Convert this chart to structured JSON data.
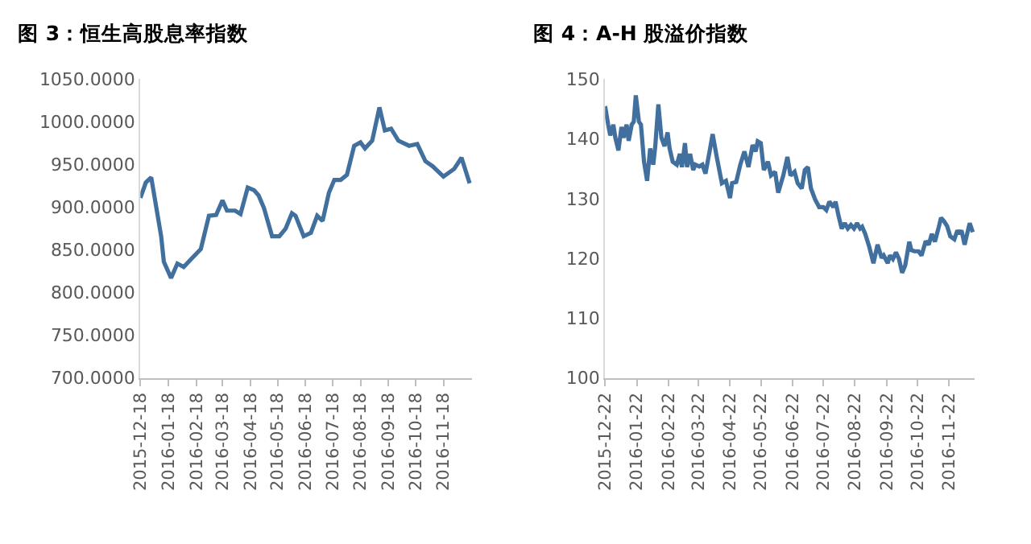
{
  "chart_data": [
    {
      "type": "line",
      "title": "图 3：恒生高股息率指数",
      "x": [
        "2015-12-18",
        "2015-12-24",
        "2015-12-30",
        "2016-01-10",
        "2016-01-13",
        "2016-01-21",
        "2016-01-28",
        "2016-02-04",
        "2016-02-12",
        "2016-02-23",
        "2016-03-03",
        "2016-03-11",
        "2016-03-18",
        "2016-03-23",
        "2016-04-01",
        "2016-04-07",
        "2016-04-15",
        "2016-04-22",
        "2016-04-27",
        "2016-05-03",
        "2016-05-12",
        "2016-05-20",
        "2016-05-27",
        "2016-06-03",
        "2016-06-07",
        "2016-06-16",
        "2016-06-24",
        "2016-07-01",
        "2016-07-07",
        "2016-07-14",
        "2016-07-20",
        "2016-07-27",
        "2016-08-03",
        "2016-08-11",
        "2016-08-18",
        "2016-08-23",
        "2016-08-31",
        "2016-09-08",
        "2016-09-14",
        "2016-09-21",
        "2016-09-29",
        "2016-10-11",
        "2016-10-20",
        "2016-10-29",
        "2016-11-06",
        "2016-11-18",
        "2016-11-30",
        "2016-12-08",
        "2016-12-17"
      ],
      "series": [
        {
          "color": "#41709f",
          "values": [
            911,
            929,
            935,
            866,
            836,
            817,
            834,
            830,
            839,
            851,
            890,
            891,
            908,
            896,
            896,
            892,
            923,
            920,
            914,
            899,
            866,
            866,
            875,
            893,
            890,
            866,
            870,
            890,
            884,
            917,
            932,
            932,
            938,
            972,
            976,
            969,
            978,
            1017,
            990,
            992,
            978,
            972,
            974,
            954,
            948,
            936,
            945,
            958,
            928
          ]
        }
      ],
      "xlim": [
        "2015-12-18",
        "2016-12-20"
      ],
      "xticks": [
        "2015-12-18",
        "2016-01-18",
        "2016-02-18",
        "2016-03-18",
        "2016-04-18",
        "2016-05-18",
        "2016-06-18",
        "2016-07-18",
        "2016-08-18",
        "2016-09-18",
        "2016-10-18",
        "2016-11-18"
      ],
      "ylim": [
        700,
        1050
      ],
      "yticks": [
        {
          "value": 700,
          "label": "700.0000"
        },
        {
          "value": 750,
          "label": "750.0000"
        },
        {
          "value": 800,
          "label": "800.0000"
        },
        {
          "value": 850,
          "label": "850.0000"
        },
        {
          "value": 900,
          "label": "900.0000"
        },
        {
          "value": 950,
          "label": "950.0000"
        },
        {
          "value": 1000,
          "label": "1000.0000"
        },
        {
          "value": 1050,
          "label": "1050.0000"
        }
      ]
    },
    {
      "type": "line",
      "title": "图 4：A-H 股溢价指数",
      "x": [
        "2015-12-22",
        "2015-12-25",
        "2015-12-27",
        "2015-12-30",
        "2016-01-01",
        "2016-01-04",
        "2016-01-07",
        "2016-01-09",
        "2016-01-12",
        "2016-01-14",
        "2016-01-17",
        "2016-01-19",
        "2016-01-21",
        "2016-01-24",
        "2016-01-26",
        "2016-01-29",
        "2016-02-01",
        "2016-02-04",
        "2016-02-07",
        "2016-02-09",
        "2016-02-12",
        "2016-02-15",
        "2016-02-18",
        "2016-02-21",
        "2016-02-23",
        "2016-02-26",
        "2016-03-01",
        "2016-03-04",
        "2016-03-06",
        "2016-03-09",
        "2016-03-11",
        "2016-03-14",
        "2016-03-17",
        "2016-03-19",
        "2016-03-23",
        "2016-03-26",
        "2016-03-29",
        "2016-04-02",
        "2016-04-05",
        "2016-04-09",
        "2016-04-14",
        "2016-04-18",
        "2016-04-22",
        "2016-04-24",
        "2016-04-28",
        "2016-05-02",
        "2016-05-06",
        "2016-05-10",
        "2016-05-14",
        "2016-05-17",
        "2016-05-19",
        "2016-05-22",
        "2016-05-25",
        "2016-05-29",
        "2016-06-01",
        "2016-06-05",
        "2016-06-08",
        "2016-06-13",
        "2016-06-17",
        "2016-06-20",
        "2016-06-24",
        "2016-06-27",
        "2016-07-01",
        "2016-07-04",
        "2016-07-07",
        "2016-07-10",
        "2016-07-14",
        "2016-07-18",
        "2016-07-22",
        "2016-07-25",
        "2016-07-28",
        "2016-08-01",
        "2016-08-03",
        "2016-08-06",
        "2016-08-09",
        "2016-08-12",
        "2016-08-15",
        "2016-08-18",
        "2016-08-21",
        "2016-08-24",
        "2016-08-27",
        "2016-08-29",
        "2016-09-01",
        "2016-09-05",
        "2016-09-09",
        "2016-09-13",
        "2016-09-17",
        "2016-09-19",
        "2016-09-23",
        "2016-09-25",
        "2016-09-28",
        "2016-10-01",
        "2016-10-04",
        "2016-10-07",
        "2016-10-10",
        "2016-10-14",
        "2016-10-16",
        "2016-10-19",
        "2016-10-23",
        "2016-10-26",
        "2016-10-30",
        "2016-11-02",
        "2016-11-05",
        "2016-11-08",
        "2016-11-12",
        "2016-11-14",
        "2016-11-17",
        "2016-11-20",
        "2016-11-23",
        "2016-11-27",
        "2016-11-30",
        "2016-12-02",
        "2016-12-04",
        "2016-12-07",
        "2016-12-10",
        "2016-12-12",
        "2016-12-15"
      ],
      "series": [
        {
          "color": "#41709f",
          "values": [
            145.5,
            142.4,
            140.6,
            142.4,
            140.2,
            138.1,
            142.0,
            140.2,
            142.4,
            139.7,
            142.4,
            142.9,
            147.3,
            142.9,
            142.4,
            136.2,
            133.0,
            138.4,
            135.7,
            138.8,
            145.8,
            140.2,
            138.8,
            141.1,
            138.4,
            136.2,
            135.7,
            137.5,
            135.3,
            139.3,
            135.3,
            137.5,
            134.8,
            135.7,
            135.4,
            135.7,
            134.2,
            137.9,
            140.8,
            137.0,
            132.6,
            133.0,
            130.1,
            132.6,
            132.8,
            135.7,
            137.9,
            135.3,
            139.0,
            137.9,
            139.6,
            139.3,
            134.8,
            136.2,
            133.9,
            134.5,
            131.0,
            133.9,
            137.0,
            133.9,
            134.5,
            132.6,
            131.7,
            134.8,
            135.3,
            131.7,
            129.9,
            128.6,
            128.6,
            128.1,
            129.5,
            128.6,
            129.5,
            127.1,
            125.0,
            125.9,
            125.0,
            125.6,
            125.0,
            125.9,
            125.0,
            125.3,
            124.1,
            121.9,
            119.2,
            122.3,
            120.1,
            120.5,
            119.2,
            120.5,
            119.9,
            121.0,
            119.9,
            117.6,
            118.8,
            122.8,
            121.4,
            121.2,
            121.2,
            120.5,
            122.9,
            122.3,
            124.1,
            122.8,
            125.4,
            126.8,
            126.2,
            125.4,
            123.7,
            123.2,
            124.7,
            124.1,
            124.7,
            122.3,
            124.5,
            125.9,
            124.4
          ]
        }
      ],
      "xlim": [
        "2015-12-22",
        "2016-12-17"
      ],
      "xticks": [
        "2015-12-22",
        "2016-01-22",
        "2016-02-22",
        "2016-03-22",
        "2016-04-22",
        "2016-05-22",
        "2016-06-22",
        "2016-07-22",
        "2016-08-22",
        "2016-09-22",
        "2016-10-22",
        "2016-11-22"
      ],
      "ylim": [
        100,
        150
      ],
      "yticks": [
        100,
        110,
        120,
        130,
        140,
        150
      ]
    }
  ]
}
